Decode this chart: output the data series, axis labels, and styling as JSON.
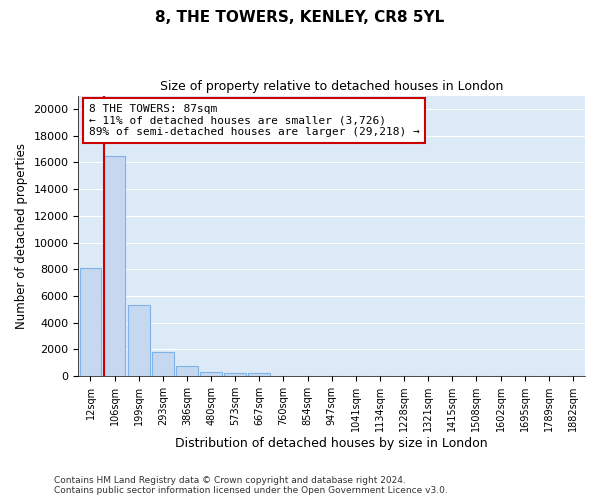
{
  "title_line1": "8, THE TOWERS, KENLEY, CR8 5YL",
  "title_line2": "Size of property relative to detached houses in London",
  "xlabel": "Distribution of detached houses by size in London",
  "ylabel": "Number of detached properties",
  "categories": [
    "12sqm",
    "106sqm",
    "199sqm",
    "293sqm",
    "386sqm",
    "480sqm",
    "573sqm",
    "667sqm",
    "760sqm",
    "854sqm",
    "947sqm",
    "1041sqm",
    "1134sqm",
    "1228sqm",
    "1321sqm",
    "1415sqm",
    "1508sqm",
    "1602sqm",
    "1695sqm",
    "1789sqm",
    "1882sqm"
  ],
  "bar_heights": [
    8100,
    16500,
    5300,
    1800,
    800,
    350,
    250,
    250,
    0,
    0,
    0,
    0,
    0,
    0,
    0,
    0,
    0,
    0,
    0,
    0,
    0
  ],
  "bar_color": "#c5d8f0",
  "bar_edge_color": "#7fb3e8",
  "background_color": "#dce9f7",
  "grid_color": "#ffffff",
  "vline_color": "#cc0000",
  "annotation_line1": "8 THE TOWERS: 87sqm",
  "annotation_line2": "← 11% of detached houses are smaller (3,726)",
  "annotation_line3": "89% of semi-detached houses are larger (29,218) →",
  "annotation_box_color": "#ffffff",
  "annotation_box_edge": "#cc0000",
  "ylim": [
    0,
    21000
  ],
  "yticks": [
    0,
    2000,
    4000,
    6000,
    8000,
    10000,
    12000,
    14000,
    16000,
    18000,
    20000
  ],
  "footer_line1": "Contains HM Land Registry data © Crown copyright and database right 2024.",
  "footer_line2": "Contains public sector information licensed under the Open Government Licence v3.0.",
  "fig_bg": "#ffffff"
}
